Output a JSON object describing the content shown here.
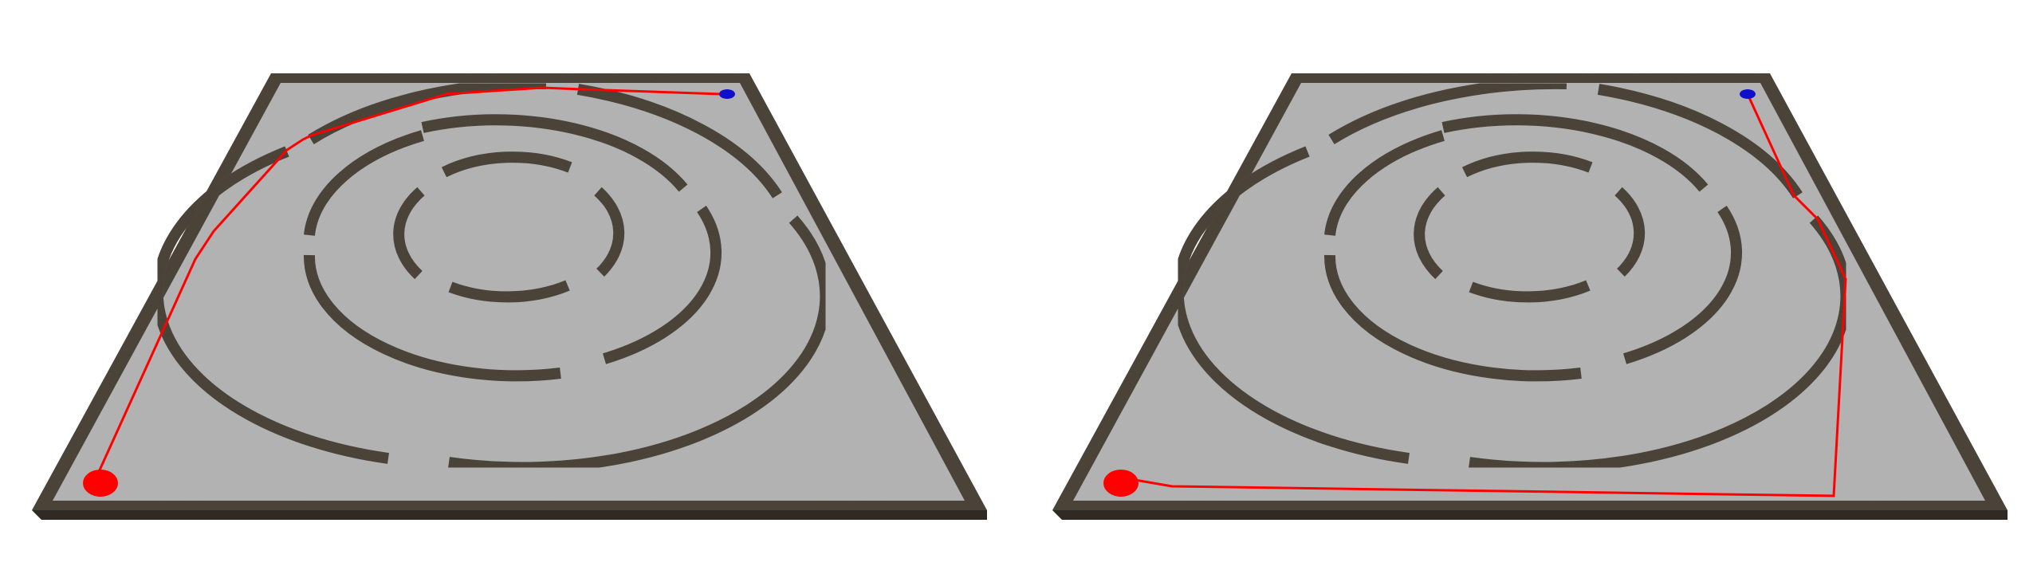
{
  "colors": {
    "background": "#ffffff",
    "floor": "#b2b2b2",
    "wall": "#4e463b",
    "wall_top": "#6a6153",
    "wall_side": "#2f2a23",
    "path": "#ff0000",
    "start_marker": "#ff0000",
    "goal_marker": "#0000cc"
  },
  "panels": [
    {
      "name": "left-maze",
      "path_route": "through-rings"
    },
    {
      "name": "right-maze",
      "path_route": "around-outside"
    }
  ]
}
